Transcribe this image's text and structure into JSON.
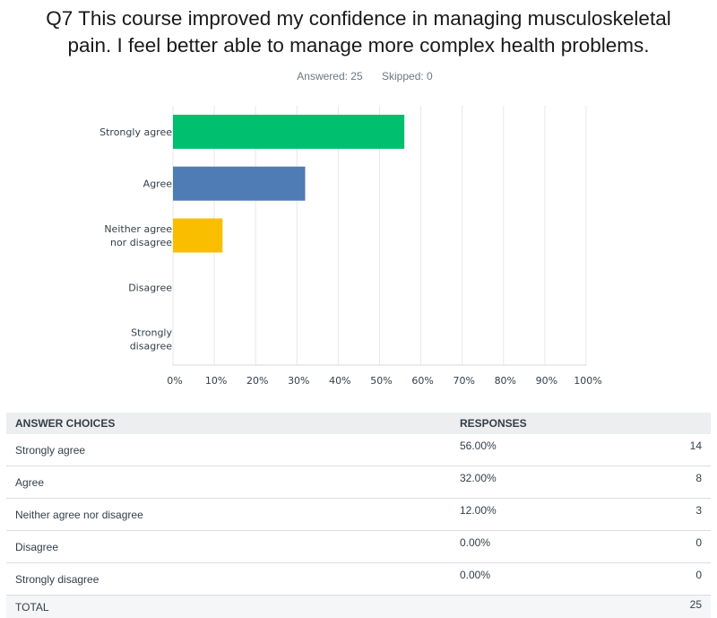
{
  "question": {
    "title_line1": "Q7 This course improved my confidence in managing musculoskeletal",
    "title_line2": "pain. I feel better able to manage more complex health problems.",
    "answered": "Answered: 25",
    "skipped": "Skipped: 0"
  },
  "chart_data": {
    "type": "bar",
    "orientation": "horizontal",
    "categories": [
      "Strongly agree",
      "Agree",
      "Neither agree nor disagree",
      "Disagree",
      "Strongly disagree"
    ],
    "category_lines": [
      [
        "Strongly agree"
      ],
      [
        "Agree"
      ],
      [
        "Neither agree",
        "nor disagree"
      ],
      [
        "Disagree"
      ],
      [
        "Strongly",
        "disagree"
      ]
    ],
    "values": [
      56,
      32,
      12,
      0,
      0
    ],
    "colors": [
      "#00bf6f",
      "#507cb6",
      "#f9be00",
      "#6bc8cd",
      "#ff8b4f"
    ],
    "xlim": [
      0,
      100
    ],
    "xticks": [
      0,
      10,
      20,
      30,
      40,
      50,
      60,
      70,
      80,
      90,
      100
    ],
    "xtick_labels": [
      "0%",
      "10%",
      "20%",
      "30%",
      "40%",
      "50%",
      "60%",
      "70%",
      "80%",
      "90%",
      "100%"
    ],
    "grid": true
  },
  "table": {
    "headers": [
      "ANSWER CHOICES",
      "RESPONSES"
    ],
    "rows": [
      {
        "choice": "Strongly agree",
        "percent": "56.00%",
        "count": "14"
      },
      {
        "choice": "Agree",
        "percent": "32.00%",
        "count": "8"
      },
      {
        "choice": "Neither agree nor disagree",
        "percent": "12.00%",
        "count": "3"
      },
      {
        "choice": "Disagree",
        "percent": "0.00%",
        "count": "0"
      },
      {
        "choice": "Strongly disagree",
        "percent": "0.00%",
        "count": "0"
      }
    ],
    "total_label": "TOTAL",
    "total_count": "25"
  }
}
